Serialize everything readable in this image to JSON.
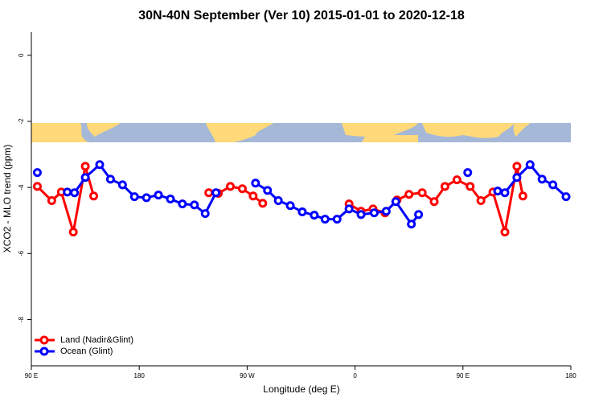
{
  "chart_data": {
    "type": "line",
    "title": "30N-40N September (Ver 10)   2015-01-01 to 2020-12-18",
    "x_label": "Longitude (deg E)",
    "y_label": "XCO2 - MLO trend (ppm)",
    "xlim": [
      90,
      540
    ],
    "ylim": [
      -9.4,
      0.7
    ],
    "xticks": [
      {
        "value": 90,
        "label": "90 E"
      },
      180,
      {
        "value": 270,
        "label": "90 W"
      },
      {
        "value": 360,
        "label": "0"
      },
      {
        "value": 450,
        "label": "90 E"
      },
      {
        "value": 540,
        "label": "180"
      }
    ],
    "yticks": [
      0,
      -2,
      -4,
      -6,
      -8
    ],
    "legend": "bottom-left",
    "series": [
      {
        "name": "Land (Nadir&Glint)",
        "color": "#ff0000",
        "x": [
          95,
          107,
          115,
          125,
          135,
          142,
          null,
          238,
          246,
          256,
          266,
          275,
          283,
          null,
          355,
          365,
          375,
          385,
          395,
          405,
          416,
          426,
          435,
          445,
          456,
          465,
          475,
          485,
          495,
          500
        ],
        "values": [
          -3.97,
          -4.4,
          -4.14,
          -5.35,
          -3.36,
          -4.26,
          null,
          -4.16,
          -4.18,
          -3.97,
          -4.04,
          -4.26,
          -4.48,
          null,
          -4.5,
          -4.72,
          -4.65,
          -4.77,
          -4.38,
          -4.21,
          -4.16,
          -4.43,
          -3.97,
          -3.77,
          -3.97,
          -4.4,
          -4.14,
          -5.35,
          -3.36,
          -4.26
        ]
      },
      {
        "name": "Ocean (Glint)",
        "color": "#0000ff",
        "x": [
          95,
          null,
          120,
          126,
          135,
          147,
          156,
          166,
          176,
          186,
          196,
          206,
          216,
          226,
          235,
          244,
          null,
          277,
          287,
          296,
          306,
          316,
          326,
          335,
          345,
          355,
          365,
          376,
          386,
          394,
          407,
          413,
          null,
          454,
          null,
          479,
          485,
          495,
          506,
          516,
          525,
          536
        ],
        "values": [
          -3.55,
          null,
          -4.14,
          -4.16,
          -3.7,
          -3.31,
          -3.75,
          -3.92,
          -4.28,
          -4.31,
          -4.23,
          -4.35,
          -4.5,
          -4.53,
          -4.79,
          -4.16,
          null,
          -3.87,
          -4.09,
          -4.4,
          -4.55,
          -4.74,
          -4.84,
          -4.96,
          -4.96,
          -4.65,
          -4.82,
          -4.77,
          -4.72,
          -4.43,
          -5.11,
          -4.82,
          null,
          -3.55,
          null,
          -4.11,
          -4.16,
          -3.7,
          -3.31,
          -3.75,
          -3.92,
          -4.28
        ]
      }
    ]
  }
}
